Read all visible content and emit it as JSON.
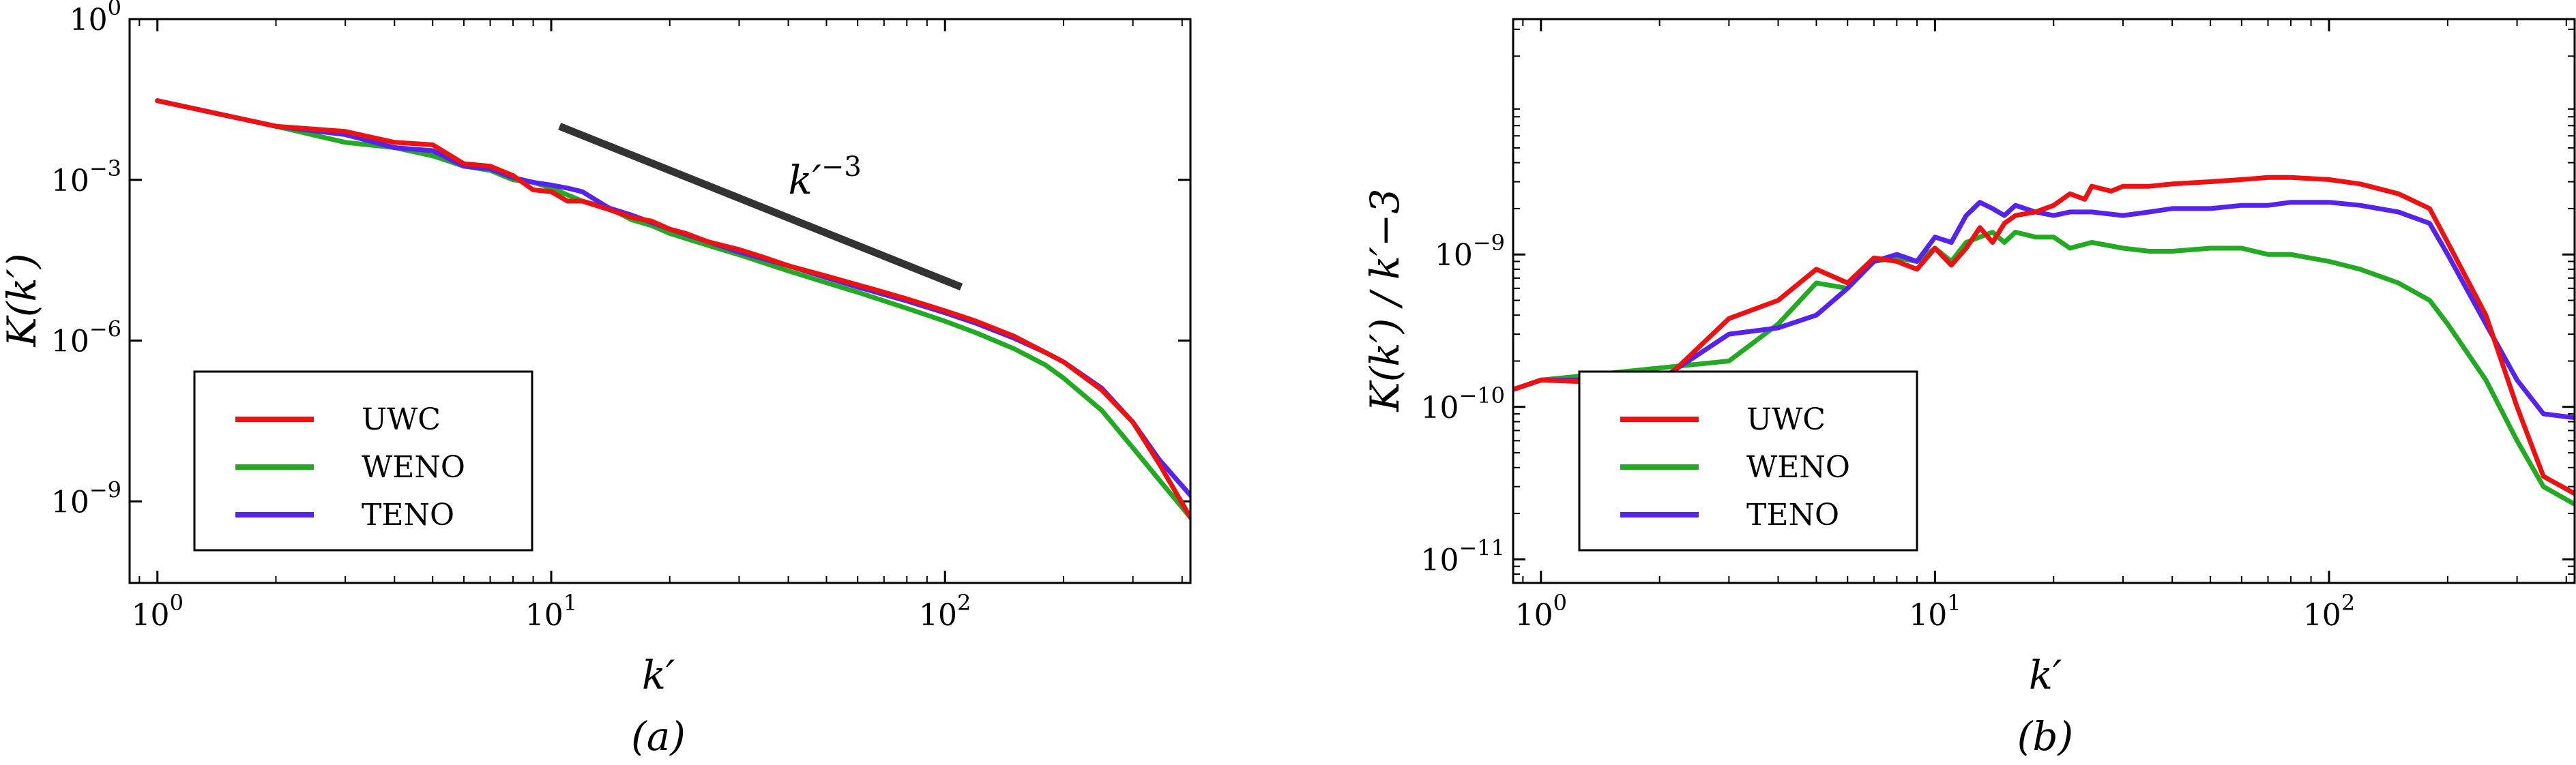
{
  "colors": {
    "UWC": "#ee1111",
    "WENO": "#22aa22",
    "TENO": "#5522ee",
    "slope": "#333333"
  },
  "chart_data": [
    {
      "type": "line",
      "panel_label": "(a)",
      "xlabel": "k′",
      "ylabel": "K(k′)",
      "x_scale": "log",
      "y_scale": "log",
      "xlim": [
        0.85,
        420
      ],
      "ylim": [
        3e-11,
        1
      ],
      "x_ticks": [
        {
          "value": 1,
          "base": "10",
          "exp": "0"
        },
        {
          "value": 10,
          "base": "10",
          "exp": "1"
        },
        {
          "value": 100,
          "base": "10",
          "exp": "2"
        }
      ],
      "y_ticks": [
        {
          "value": 1,
          "base": "10",
          "exp": "0"
        },
        {
          "value": 0.001,
          "base": "10",
          "exp": "−3"
        },
        {
          "value": 1e-06,
          "base": "10",
          "exp": "−6"
        },
        {
          "value": 1e-09,
          "base": "10",
          "exp": "−9"
        }
      ],
      "legend": {
        "position": "lower-left",
        "entries": [
          "UWC",
          "WENO",
          "TENO"
        ]
      },
      "annotation": {
        "base": "k′",
        "exp": "−3",
        "line": {
          "x": [
            10.5,
            110
          ],
          "y": [
            0.01,
            1e-05
          ]
        },
        "label_at": [
          40,
          0.00055
        ]
      },
      "series": [
        {
          "name": "UWC",
          "x": [
            1,
            2,
            3,
            4,
            5,
            6,
            7,
            8,
            9,
            10,
            11,
            12,
            14,
            16,
            18,
            20,
            22,
            25,
            30,
            35,
            40,
            50,
            60,
            70,
            80,
            100,
            120,
            150,
            180,
            200,
            250,
            300,
            350,
            420
          ],
          "y": [
            0.03,
            0.01,
            0.008,
            0.005,
            0.0045,
            0.002,
            0.0018,
            0.0012,
            0.00065,
            0.0006,
            0.0004,
            0.0004,
            0.00028,
            0.0002,
            0.00017,
            0.00012,
            0.0001,
            7e-05,
            5e-05,
            3.5e-05,
            2.5e-05,
            1.6e-05,
            1.1e-05,
            8e-06,
            6e-06,
            3.6e-06,
            2.3e-06,
            1.2e-06,
            6e-07,
            4e-07,
            1.2e-07,
            3e-08,
            5e-09,
            5e-10
          ]
        },
        {
          "name": "WENO",
          "x": [
            1,
            2,
            3,
            4,
            5,
            6,
            7,
            8,
            9,
            10,
            12,
            14,
            16,
            18,
            20,
            25,
            30,
            40,
            50,
            60,
            80,
            100,
            120,
            150,
            180,
            200,
            250,
            300,
            350,
            420
          ],
          "y": [
            0.03,
            0.01,
            0.005,
            0.004,
            0.0028,
            0.0018,
            0.0015,
            0.001,
            0.0009,
            0.0007,
            0.0004,
            0.0003,
            0.00018,
            0.00014,
            0.0001,
            6e-05,
            4e-05,
            2e-05,
            1.2e-05,
            8e-06,
            4e-06,
            2.3e-06,
            1.4e-06,
            7e-07,
            3.5e-07,
            2e-07,
            5e-08,
            1e-08,
            2.5e-09,
            5e-10
          ]
        },
        {
          "name": "TENO",
          "x": [
            1,
            2,
            3,
            4,
            5,
            6,
            7,
            8,
            9,
            10,
            11,
            12,
            14,
            16,
            18,
            20,
            25,
            30,
            40,
            50,
            60,
            80,
            100,
            120,
            150,
            180,
            200,
            250,
            300,
            350,
            420
          ],
          "y": [
            0.03,
            0.01,
            0.007,
            0.004,
            0.0035,
            0.0018,
            0.0016,
            0.0011,
            0.0009,
            0.0008,
            0.0007,
            0.0006,
            0.0003,
            0.00022,
            0.00016,
            0.00012,
            7e-05,
            4.5e-05,
            2.5e-05,
            1.5e-05,
            1e-05,
            5.5e-06,
            3.3e-06,
            2.1e-06,
            1.1e-06,
            6e-07,
            4e-07,
            1.3e-07,
            3e-08,
            6e-09,
            1.3e-09
          ]
        }
      ]
    },
    {
      "type": "line",
      "panel_label": "(b)",
      "xlabel": "k′",
      "ylabel": "K(k′) / k′−3",
      "x_scale": "log",
      "y_scale": "log",
      "xlim": [
        0.85,
        420
      ],
      "ylim": [
        7e-12,
        3.5e-08
      ],
      "x_ticks": [
        {
          "value": 1,
          "base": "10",
          "exp": "0"
        },
        {
          "value": 10,
          "base": "10",
          "exp": "1"
        },
        {
          "value": 100,
          "base": "10",
          "exp": "2"
        }
      ],
      "y_ticks": [
        {
          "value": 1e-09,
          "base": "10",
          "exp": "−9"
        },
        {
          "value": 1e-10,
          "base": "10",
          "exp": "−10"
        },
        {
          "value": 1e-11,
          "base": "10",
          "exp": "−11"
        }
      ],
      "legend": {
        "position": "lower-left",
        "entries": [
          "UWC",
          "WENO",
          "TENO"
        ]
      },
      "series": [
        {
          "name": "UWC",
          "x": [
            0.85,
            1,
            2,
            3,
            4,
            5,
            6,
            7,
            8,
            9,
            10,
            11,
            12,
            13,
            14,
            15,
            16,
            18,
            20,
            22,
            24,
            25,
            28,
            30,
            35,
            40,
            50,
            60,
            70,
            80,
            100,
            120,
            150,
            180,
            200,
            250,
            300,
            350,
            420
          ],
          "y": [
            1.3e-10,
            1.5e-10,
            1.4e-10,
            3.8e-10,
            5e-10,
            8e-10,
            6.5e-10,
            9.5e-10,
            9e-10,
            8e-10,
            1.1e-09,
            8.5e-10,
            1.1e-09,
            1.5e-09,
            1.2e-09,
            1.6e-09,
            1.8e-09,
            1.9e-09,
            2.1e-09,
            2.5e-09,
            2.3e-09,
            2.8e-09,
            2.6e-09,
            2.8e-09,
            2.8e-09,
            2.9e-09,
            3e-09,
            3.1e-09,
            3.2e-09,
            3.2e-09,
            3.1e-09,
            2.9e-09,
            2.5e-09,
            2e-09,
            1.2e-09,
            4e-10,
            1e-10,
            3.5e-11,
            2.7e-11
          ]
        },
        {
          "name": "WENO",
          "x": [
            0.85,
            1,
            2,
            3,
            4,
            5,
            6,
            7,
            8,
            9,
            10,
            11,
            12,
            14,
            15,
            16,
            18,
            20,
            22,
            25,
            30,
            35,
            40,
            50,
            60,
            70,
            80,
            100,
            120,
            150,
            180,
            200,
            250,
            300,
            350,
            420
          ],
          "y": [
            1.3e-10,
            1.5e-10,
            1.8e-10,
            2e-10,
            3.5e-10,
            6.5e-10,
            6e-10,
            9e-10,
            9.5e-10,
            9e-10,
            1.1e-09,
            9e-10,
            1.2e-09,
            1.4e-09,
            1.2e-09,
            1.4e-09,
            1.3e-09,
            1.3e-09,
            1.1e-09,
            1.2e-09,
            1.1e-09,
            1.05e-09,
            1.05e-09,
            1.1e-09,
            1.1e-09,
            1e-09,
            1e-09,
            9e-10,
            8e-10,
            6.5e-10,
            5e-10,
            3.5e-10,
            1.5e-10,
            6e-11,
            3e-11,
            2.3e-11
          ]
        },
        {
          "name": "TENO",
          "x": [
            0.85,
            1,
            2,
            3,
            4,
            5,
            6,
            7,
            8,
            9,
            10,
            11,
            12,
            13,
            14,
            15,
            16,
            18,
            20,
            22,
            25,
            30,
            35,
            40,
            50,
            60,
            70,
            80,
            100,
            120,
            150,
            180,
            200,
            250,
            300,
            350,
            420
          ],
          "y": [
            1.3e-10,
            1.5e-10,
            1.5e-10,
            3e-10,
            3.3e-10,
            4e-10,
            6e-10,
            9e-10,
            1e-09,
            9e-10,
            1.3e-09,
            1.2e-09,
            1.8e-09,
            2.2e-09,
            2e-09,
            1.8e-09,
            2.1e-09,
            1.9e-09,
            1.8e-09,
            1.9e-09,
            1.9e-09,
            1.8e-09,
            1.9e-09,
            2e-09,
            2e-09,
            2.1e-09,
            2.1e-09,
            2.2e-09,
            2.2e-09,
            2.1e-09,
            1.9e-09,
            1.6e-09,
            1e-09,
            3.5e-10,
            1.5e-10,
            9e-11,
            8.5e-11
          ]
        }
      ]
    }
  ]
}
